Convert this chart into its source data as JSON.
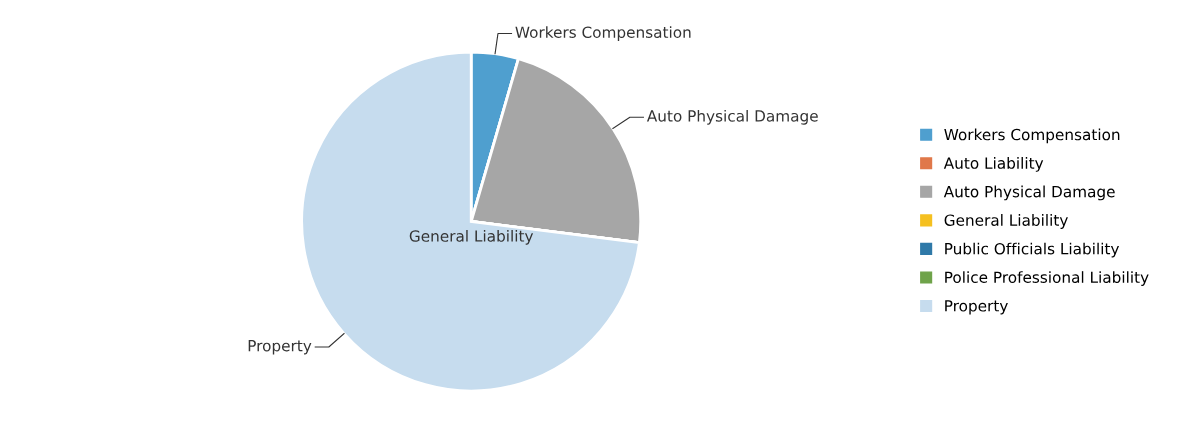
{
  "chart_data": {
    "type": "pie",
    "categories": [
      "Workers Compensation",
      "Auto Liability",
      "Auto Physical Damage",
      "General Liability",
      "Public Officials Liability",
      "Police Professional Liability",
      "Property"
    ],
    "values": [
      4.5,
      0,
      22.5,
      null,
      0,
      0,
      73
    ],
    "colors": [
      "#4f9fcf",
      "#e0784a",
      "#a6a6a6",
      "#f5c020",
      "#2f79a8",
      "#6fa34a",
      "#c6dcee"
    ],
    "legend": "right"
  }
}
